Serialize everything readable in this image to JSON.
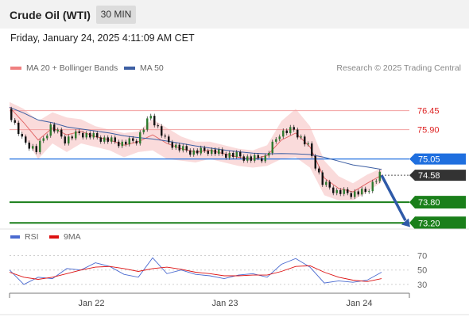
{
  "header": {
    "instrument": "Crude Oil (WTI)",
    "timeframe": "30 MIN"
  },
  "date_line": "Friday, January 24, 2025 4:11:09 AM CET",
  "legend": {
    "bollinger_label": "MA 20 + Bollinger Bands",
    "ma50_label": "MA 50",
    "rsi_label": "RSI",
    "rsi_ma_label": "9MA"
  },
  "source": "Research © 2025 Trading Central",
  "colors": {
    "bollinger": "#f08080",
    "ma50": "#3d5fa3",
    "candle": "#2d7a2d",
    "pivot": "#1f6fdf",
    "price_tag": "#333333",
    "support": "#1a7f1a",
    "rsi": "#4a6ad0",
    "rsi_ma": "#dd1111",
    "arrow": "#2f5aa8"
  },
  "chart_data": [
    {
      "type": "line",
      "title": "Crude Oil (WTI)",
      "timeframe": "30 MIN",
      "x_tick_labels": [
        "Jan 22",
        "Jan 23",
        "Jan 24"
      ],
      "ylim": [
        73.0,
        76.9
      ],
      "levels": [
        {
          "value": 76.45,
          "label": "76.45",
          "kind": "resistance"
        },
        {
          "value": 75.9,
          "label": "75.90",
          "kind": "resistance"
        },
        {
          "value": 75.05,
          "label": "75.05",
          "kind": "pivot"
        },
        {
          "value": 74.58,
          "label": "74.58",
          "kind": "last-price"
        },
        {
          "value": 73.8,
          "label": "73.80",
          "kind": "support"
        },
        {
          "value": 73.2,
          "label": "73.20",
          "kind": "support"
        }
      ],
      "series": [
        {
          "name": "MA 20 + Bollinger Bands",
          "values": [
            76.55,
            76.1,
            75.6,
            75.95,
            75.75,
            75.85,
            75.7,
            75.6,
            75.45,
            75.55,
            75.75,
            75.5,
            75.35,
            75.25,
            75.3,
            75.2,
            75.1,
            75.05,
            75.15,
            75.6,
            75.8,
            75.4,
            74.5,
            74.2,
            74.1,
            74.35,
            74.58
          ]
        },
        {
          "name": "MA 50",
          "values": [
            76.55,
            76.38,
            76.18,
            76.1,
            75.98,
            75.92,
            75.86,
            75.8,
            75.72,
            75.67,
            75.63,
            75.57,
            75.5,
            75.43,
            75.37,
            75.31,
            75.26,
            75.22,
            75.2,
            75.21,
            75.2,
            75.18,
            75.1,
            74.99,
            74.88,
            74.82,
            74.75
          ]
        },
        {
          "name": "price",
          "values": [
            76.5,
            75.6,
            75.3,
            76.0,
            75.6,
            75.8,
            75.7,
            75.6,
            75.5,
            75.6,
            76.3,
            75.6,
            75.35,
            75.25,
            75.3,
            75.2,
            75.15,
            75.05,
            75.1,
            75.8,
            75.9,
            75.4,
            74.35,
            74.1,
            74.05,
            74.1,
            74.58
          ]
        }
      ]
    },
    {
      "type": "line",
      "title": "RSI",
      "yticks": [
        30,
        50,
        70
      ],
      "ylim": [
        20,
        75
      ],
      "series": [
        {
          "name": "RSI",
          "values": [
            50,
            30,
            40,
            38,
            52,
            50,
            60,
            55,
            44,
            40,
            67,
            45,
            50,
            44,
            42,
            38,
            43,
            45,
            40,
            58,
            66,
            54,
            32,
            35,
            33,
            36,
            47
          ]
        },
        {
          "name": "9MA",
          "values": [
            47,
            40,
            37,
            40,
            45,
            50,
            54,
            55,
            52,
            48,
            52,
            54,
            51,
            47,
            45,
            42,
            42,
            43,
            43,
            48,
            55,
            56,
            47,
            40,
            36,
            34,
            38
          ]
        }
      ]
    }
  ]
}
